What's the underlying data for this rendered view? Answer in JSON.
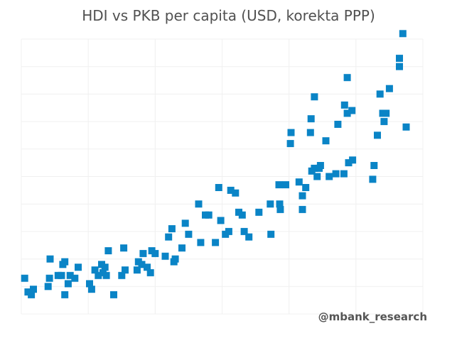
{
  "chart_data": {
    "type": "scatter",
    "title": "HDI vs PKB per capita (USD, korekta PPP)",
    "xlabel": "",
    "ylabel": "",
    "tick_labels_shown": false,
    "grid": true,
    "marker": "square",
    "colors": {
      "marker": "#0a84c6",
      "grid": "#f0f0f0",
      "title": "#505050",
      "watermark": "#555555"
    },
    "xlim": [
      0,
      60
    ],
    "ylim": [
      0,
      10
    ],
    "points": [
      [
        0.5,
        1.3
      ],
      [
        1,
        0.8
      ],
      [
        1.5,
        0.7
      ],
      [
        1.8,
        0.9
      ],
      [
        4,
        1.0
      ],
      [
        4.2,
        1.3
      ],
      [
        4.3,
        2.0
      ],
      [
        5.5,
        1.4
      ],
      [
        6,
        1.4
      ],
      [
        6.2,
        1.8
      ],
      [
        6.5,
        0.7
      ],
      [
        6.5,
        1.9
      ],
      [
        7,
        1.1
      ],
      [
        7.3,
        1.4
      ],
      [
        8,
        1.3
      ],
      [
        8.5,
        1.7
      ],
      [
        10.2,
        1.1
      ],
      [
        10.5,
        0.9
      ],
      [
        11,
        1.6
      ],
      [
        11.5,
        1.4
      ],
      [
        12,
        1.8
      ],
      [
        12.2,
        1.5
      ],
      [
        12.5,
        1.7
      ],
      [
        12.7,
        1.4
      ],
      [
        13,
        2.3
      ],
      [
        13.8,
        0.7
      ],
      [
        15,
        1.4
      ],
      [
        15.3,
        2.4
      ],
      [
        15.5,
        1.6
      ],
      [
        17.3,
        1.6
      ],
      [
        17.5,
        1.9
      ],
      [
        18,
        1.8
      ],
      [
        18.2,
        2.2
      ],
      [
        18.8,
        1.7
      ],
      [
        19.3,
        1.5
      ],
      [
        19.5,
        2.3
      ],
      [
        20,
        2.2
      ],
      [
        21.5,
        2.1
      ],
      [
        22,
        2.8
      ],
      [
        22.5,
        3.1
      ],
      [
        22.8,
        1.9
      ],
      [
        23,
        2.0
      ],
      [
        24,
        2.4
      ],
      [
        24.5,
        3.3
      ],
      [
        25,
        2.9
      ],
      [
        26.5,
        4.0
      ],
      [
        26.8,
        2.6
      ],
      [
        27.5,
        3.6
      ],
      [
        28,
        3.6
      ],
      [
        29,
        2.6
      ],
      [
        29.5,
        4.6
      ],
      [
        29.8,
        3.4
      ],
      [
        30.5,
        2.9
      ],
      [
        31,
        3.0
      ],
      [
        31.3,
        4.5
      ],
      [
        32,
        4.4
      ],
      [
        32.5,
        3.7
      ],
      [
        33,
        3.6
      ],
      [
        33.3,
        3.0
      ],
      [
        34,
        2.8
      ],
      [
        35.5,
        3.7
      ],
      [
        37.3,
        2.9
      ],
      [
        37.2,
        4.0
      ],
      [
        38.5,
        4.7
      ],
      [
        38.6,
        4.0
      ],
      [
        38.7,
        3.8
      ],
      [
        39.5,
        4.7
      ],
      [
        40.2,
        6.2
      ],
      [
        40.3,
        6.6
      ],
      [
        41.5,
        4.8
      ],
      [
        42,
        4.3
      ],
      [
        42,
        3.8
      ],
      [
        42.5,
        4.6
      ],
      [
        43.2,
        6.6
      ],
      [
        43.3,
        7.1
      ],
      [
        43.4,
        5.2
      ],
      [
        43.8,
        7.9
      ],
      [
        43.8,
        5.3
      ],
      [
        44.2,
        5.0
      ],
      [
        44.5,
        5.3
      ],
      [
        44.7,
        5.4
      ],
      [
        45.5,
        6.3
      ],
      [
        46,
        5.0
      ],
      [
        47,
        5.1
      ],
      [
        47.3,
        6.9
      ],
      [
        48.2,
        5.1
      ],
      [
        48.3,
        7.6
      ],
      [
        48.7,
        7.3
      ],
      [
        48.7,
        8.6
      ],
      [
        48.9,
        5.5
      ],
      [
        49.4,
        7.4
      ],
      [
        49.5,
        5.6
      ],
      [
        52.5,
        4.9
      ],
      [
        52.7,
        5.4
      ],
      [
        53.2,
        6.5
      ],
      [
        53.6,
        8.0
      ],
      [
        54,
        7.3
      ],
      [
        54.2,
        7.0
      ],
      [
        54.5,
        7.3
      ],
      [
        55,
        8.2
      ],
      [
        56.5,
        9.3
      ],
      [
        57.5,
        6.8
      ],
      [
        56.5,
        9.0
      ],
      [
        57,
        10.2
      ]
    ]
  },
  "watermark": "@mbank_research"
}
